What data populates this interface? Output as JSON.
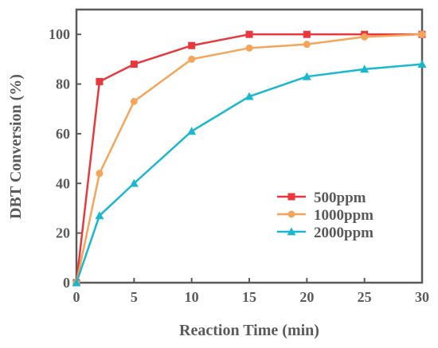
{
  "chart_data": {
    "type": "line",
    "title": "",
    "xlabel": "Reaction Time (min)",
    "ylabel": "DBT Conversion (%)",
    "xlim": [
      0,
      30
    ],
    "ylim": [
      0,
      110
    ],
    "xticks": [
      0,
      5,
      10,
      15,
      20,
      25,
      30
    ],
    "yticks": [
      0,
      20,
      40,
      60,
      80,
      100
    ],
    "grid": false,
    "legend_position": "lower-right",
    "axis_color": "#5a5a5a",
    "series": [
      {
        "name": "500ppm",
        "color": "#e8383d",
        "marker": "square",
        "x": [
          0,
          2,
          5,
          10,
          15,
          20,
          25,
          30
        ],
        "y": [
          0,
          81,
          88,
          95.5,
          100,
          100,
          100,
          100
        ]
      },
      {
        "name": "1000ppm",
        "color": "#f5a55a",
        "marker": "circle",
        "x": [
          0,
          2,
          5,
          10,
          15,
          20,
          25,
          30
        ],
        "y": [
          0,
          44,
          73,
          90,
          94.5,
          96,
          99,
          100
        ]
      },
      {
        "name": "2000ppm",
        "color": "#1ab8cf",
        "marker": "triangle",
        "x": [
          0,
          2,
          5,
          10,
          15,
          20,
          25,
          30
        ],
        "y": [
          0,
          27,
          40,
          61,
          75,
          83,
          86,
          88
        ]
      }
    ]
  }
}
